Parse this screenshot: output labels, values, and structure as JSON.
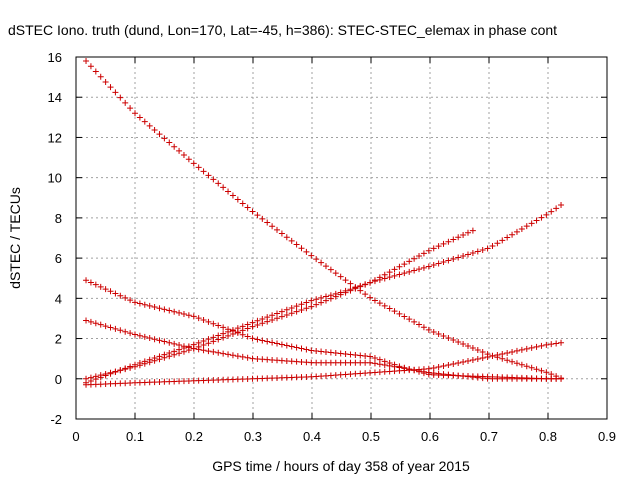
{
  "chart_data": {
    "type": "scatter",
    "title": "dSTEC Iono. truth (dund, Lon=170, Lat=-45, h=386): STEC-STEC_elemax in phase cont",
    "xlabel": "GPS time / hours of day 358 of year 2015",
    "ylabel": "dSTEC  / TECUs",
    "xlim": [
      0,
      0.9
    ],
    "ylim": [
      -2,
      16
    ],
    "x_ticks": [
      0,
      0.1,
      0.2,
      0.3,
      0.4,
      0.5,
      0.6,
      0.7,
      0.8,
      0.9
    ],
    "y_ticks": [
      -2,
      0,
      2,
      4,
      6,
      8,
      10,
      12,
      14,
      16
    ],
    "x_tick_labels": [
      "0",
      "0.1",
      "0.2",
      "0.3",
      "0.4",
      "0.5",
      "0.6",
      "0.7",
      "0.8",
      "0.9"
    ],
    "y_tick_labels": [
      "-2",
      "0",
      "2",
      "4",
      "6",
      "8",
      "10",
      "12",
      "14",
      "16"
    ],
    "grid": true,
    "marker": "+",
    "color": "#cc0000",
    "series": [
      {
        "x": [
          0.017,
          0.1,
          0.2,
          0.3,
          0.4,
          0.5,
          0.6,
          0.7,
          0.8,
          0.825
        ],
        "y": [
          15.8,
          13.2,
          10.7,
          8.3,
          6.1,
          4.0,
          2.4,
          1.2,
          0.3,
          0.0
        ]
      },
      {
        "x": [
          0.017,
          0.1,
          0.2,
          0.3,
          0.4,
          0.45,
          0.5,
          0.6,
          0.675
        ],
        "y": [
          -0.2,
          0.7,
          1.7,
          2.8,
          3.9,
          4.3,
          4.8,
          6.4,
          7.4
        ]
      },
      {
        "x": [
          0.017,
          0.1,
          0.2,
          0.3,
          0.4,
          0.45,
          0.5,
          0.6,
          0.7,
          0.8,
          0.825
        ],
        "y": [
          0.0,
          0.6,
          1.5,
          2.6,
          3.6,
          4.2,
          4.8,
          5.6,
          6.5,
          8.2,
          8.7
        ]
      },
      {
        "x": [
          0.017,
          0.1,
          0.2,
          0.3,
          0.4,
          0.5,
          0.55,
          0.6,
          0.7,
          0.8,
          0.825
        ],
        "y": [
          4.9,
          3.8,
          3.1,
          2.0,
          1.4,
          1.1,
          0.6,
          0.2,
          0.1,
          0.0,
          0.0
        ]
      },
      {
        "x": [
          0.017,
          0.1,
          0.2,
          0.3,
          0.4,
          0.5,
          0.6,
          0.7,
          0.8,
          0.825
        ],
        "y": [
          2.9,
          2.2,
          1.5,
          1.0,
          0.8,
          0.8,
          0.3,
          0.0,
          0.0,
          0.0
        ]
      },
      {
        "x": [
          0.017,
          0.1,
          0.2,
          0.3,
          0.4,
          0.5,
          0.6,
          0.7,
          0.8,
          0.825
        ],
        "y": [
          -0.3,
          -0.2,
          -0.1,
          0.0,
          0.1,
          0.3,
          0.5,
          1.1,
          1.7,
          1.8
        ]
      }
    ]
  }
}
